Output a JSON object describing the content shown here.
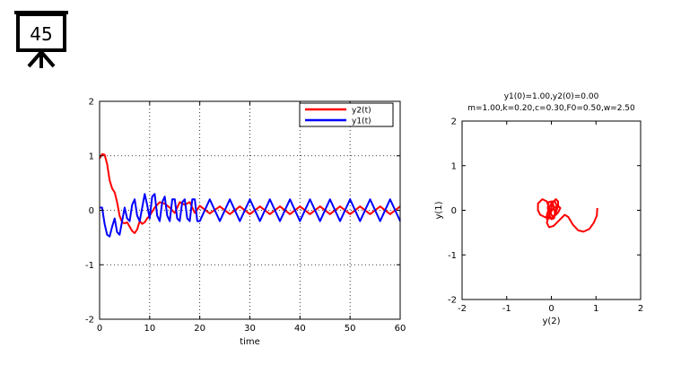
{
  "slide": {
    "number": "45",
    "icon": "presentation-board-icon"
  },
  "chart_data": [
    {
      "type": "line",
      "xlabel": "time",
      "ylabel": "",
      "xlim": [
        0,
        60
      ],
      "ylim": [
        -2,
        2
      ],
      "xticks": [
        0,
        10,
        20,
        30,
        40,
        50,
        60
      ],
      "yticks": [
        -2,
        -1,
        0,
        1,
        2
      ],
      "grid": true,
      "legend_position": "top-right",
      "series": [
        {
          "name": "y2(t)",
          "color": "#ff0000",
          "x": [
            0,
            0.5,
            1,
            1.5,
            2,
            2.5,
            3,
            3.5,
            4,
            4.5,
            5,
            5.5,
            6,
            6.5,
            7,
            7.5,
            8,
            8.5,
            9,
            9.5,
            10,
            11,
            12,
            13,
            14,
            15,
            16,
            17,
            18,
            19,
            20,
            22,
            24,
            26,
            28,
            30,
            32,
            34,
            36,
            38,
            40,
            42,
            44,
            46,
            48,
            50,
            52,
            54,
            56,
            58,
            60
          ],
          "y": [
            0.95,
            1.03,
            1.02,
            0.85,
            0.55,
            0.4,
            0.33,
            0.15,
            -0.1,
            -0.22,
            -0.24,
            -0.22,
            -0.3,
            -0.38,
            -0.42,
            -0.35,
            -0.2,
            -0.25,
            -0.22,
            -0.15,
            -0.1,
            0.05,
            0.15,
            0.12,
            0.05,
            -0.05,
            0.15,
            0.1,
            0.15,
            -0.05,
            0.08,
            -0.06,
            0.07,
            -0.07,
            0.07,
            -0.07,
            0.07,
            -0.07,
            0.07,
            -0.07,
            0.07,
            -0.07,
            0.07,
            -0.07,
            0.07,
            -0.07,
            0.07,
            -0.07,
            0.07,
            -0.07,
            0.07
          ]
        },
        {
          "name": "y1(t)",
          "color": "#0000ff",
          "x": [
            0,
            0.5,
            1,
            1.5,
            2,
            2.5,
            3,
            3.5,
            4,
            4.5,
            5,
            5.5,
            6,
            6.5,
            7,
            7.5,
            8,
            8.5,
            9,
            9.5,
            10,
            10.5,
            11,
            11.5,
            12,
            12.5,
            13,
            13.5,
            14,
            14.5,
            15,
            15.5,
            16,
            16.5,
            17,
            17.5,
            18,
            18.5,
            19,
            19.5,
            20,
            22,
            24,
            26,
            28,
            30,
            32,
            34,
            36,
            38,
            40,
            42,
            44,
            46,
            48,
            50,
            52,
            54,
            56,
            58,
            60
          ],
          "y": [
            0.05,
            0.05,
            -0.25,
            -0.45,
            -0.48,
            -0.3,
            -0.15,
            -0.4,
            -0.45,
            -0.2,
            0.05,
            -0.15,
            -0.2,
            0.1,
            0.2,
            -0.1,
            -0.2,
            0.05,
            0.3,
            0.1,
            -0.15,
            0.25,
            0.3,
            -0.1,
            -0.2,
            0.15,
            0.25,
            -0.1,
            -0.2,
            0.2,
            0.2,
            -0.15,
            -0.2,
            0.15,
            0.2,
            -0.15,
            -0.2,
            0.2,
            0.2,
            -0.2,
            -0.2,
            0.2,
            -0.2,
            0.2,
            -0.2,
            0.2,
            -0.2,
            0.2,
            -0.2,
            0.2,
            -0.2,
            0.2,
            -0.2,
            0.2,
            -0.2,
            0.2,
            -0.2,
            0.2,
            -0.2,
            0.2,
            -0.2
          ]
        }
      ]
    },
    {
      "type": "line",
      "title": "y1(0)=1.00,y2(0)=0.00",
      "subtitle": "m=1.00,k=0.20,c=0.30,F0=0.50,w=2.50",
      "xlabel": "y(2)",
      "ylabel": "y(1)",
      "xlim": [
        -2,
        2
      ],
      "ylim": [
        -2,
        2
      ],
      "xticks": [
        -2,
        -1,
        0,
        1,
        2
      ],
      "yticks": [
        -2,
        -1,
        0,
        1,
        2
      ],
      "grid": false,
      "series": [
        {
          "color": "#ff0000",
          "x": [
            1.03,
            1.02,
            0.95,
            0.85,
            0.72,
            0.6,
            0.48,
            0.38,
            0.3,
            0.18,
            0.05,
            -0.05,
            -0.1,
            -0.05,
            0.05,
            0.15,
            0.2,
            0.15,
            0.05,
            -0.05,
            -0.15,
            -0.25,
            -0.3,
            -0.3,
            -0.2,
            -0.1,
            -0.05,
            0.0,
            0.05,
            0.1,
            0.15,
            0.15,
            0.1,
            0.05,
            0.0,
            -0.05,
            -0.1,
            -0.1,
            -0.05,
            0.02,
            0.08,
            0.12,
            0.1,
            0.05,
            0.0,
            -0.05,
            -0.08,
            -0.06,
            0.0,
            0.05,
            0.08,
            0.06,
            0.0,
            -0.05,
            -0.08
          ],
          "y": [
            0.05,
            -0.12,
            -0.28,
            -0.42,
            -0.48,
            -0.45,
            -0.32,
            -0.15,
            -0.1,
            -0.22,
            -0.35,
            -0.38,
            -0.28,
            -0.1,
            0.05,
            0.1,
            0.05,
            -0.05,
            -0.15,
            -0.18,
            -0.15,
            -0.1,
            0.0,
            0.15,
            0.25,
            0.2,
            0.05,
            -0.1,
            -0.15,
            -0.05,
            0.1,
            0.2,
            0.25,
            0.2,
            0.05,
            -0.1,
            -0.2,
            -0.1,
            0.05,
            0.2,
            0.2,
            0.1,
            -0.05,
            -0.15,
            -0.2,
            -0.1,
            0.05,
            0.18,
            0.2,
            0.1,
            -0.05,
            -0.18,
            -0.2,
            -0.1,
            0.05
          ]
        }
      ]
    }
  ]
}
